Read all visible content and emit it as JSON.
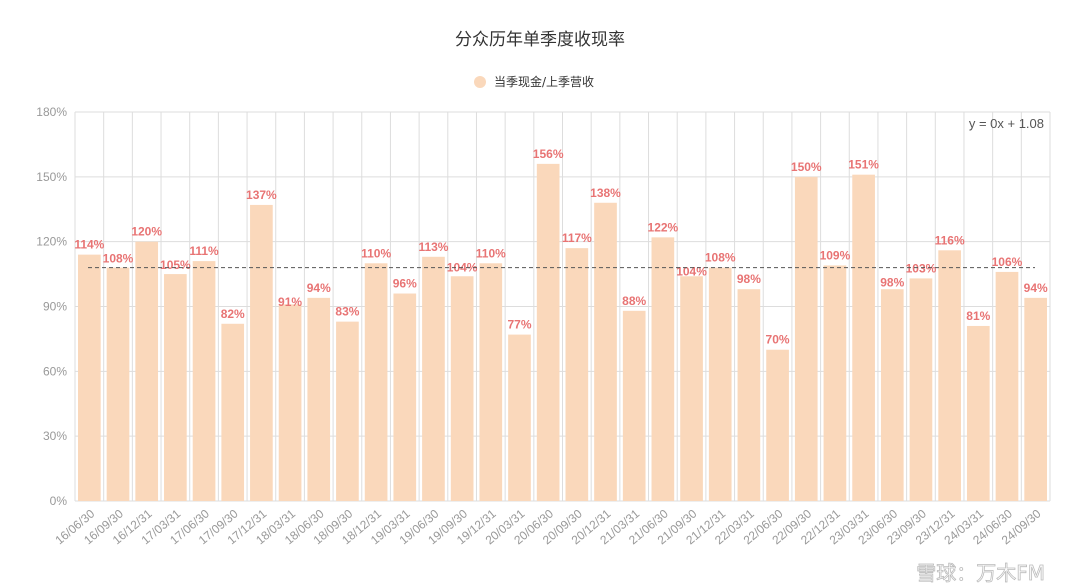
{
  "chart_data": {
    "type": "bar",
    "title": "分众历年单季度收现率",
    "legend": {
      "entries": [
        "当季现金/上季营收"
      ],
      "placement": "top"
    },
    "categories": [
      "16/06/30",
      "16/09/30",
      "16/12/31",
      "17/03/31",
      "17/06/30",
      "17/09/30",
      "17/12/31",
      "18/03/31",
      "18/06/30",
      "18/09/30",
      "18/12/31",
      "19/03/31",
      "19/06/30",
      "19/09/30",
      "19/12/31",
      "20/03/31",
      "20/06/30",
      "20/09/30",
      "20/12/31",
      "21/03/31",
      "21/06/30",
      "21/09/30",
      "21/12/31",
      "22/03/31",
      "22/06/30",
      "22/09/30",
      "22/12/31",
      "23/03/31",
      "23/06/30",
      "23/09/30",
      "23/12/31",
      "24/03/31",
      "24/06/30",
      "24/09/30"
    ],
    "series": [
      {
        "name": "当季现金/上季营收",
        "values": [
          114,
          108,
          120,
          105,
          111,
          82,
          137,
          91,
          94,
          83,
          110,
          96,
          113,
          104,
          110,
          77,
          156,
          117,
          138,
          88,
          122,
          104,
          108,
          98,
          70,
          150,
          109,
          151,
          98,
          103,
          116,
          81,
          106,
          94
        ]
      }
    ],
    "unit": "%",
    "ylim": [
      0,
      180
    ],
    "yticks": [
      "0%",
      "30%",
      "60%",
      "90%",
      "120%",
      "150%",
      "180%"
    ],
    "trendline": {
      "label": "y = 0x + 1.08",
      "value": 108
    },
    "grid": true,
    "colors": {
      "bar": "#fad8bb",
      "label": "#e87474",
      "grid": "#dddddd"
    }
  },
  "watermark": "雪球：万木FM"
}
